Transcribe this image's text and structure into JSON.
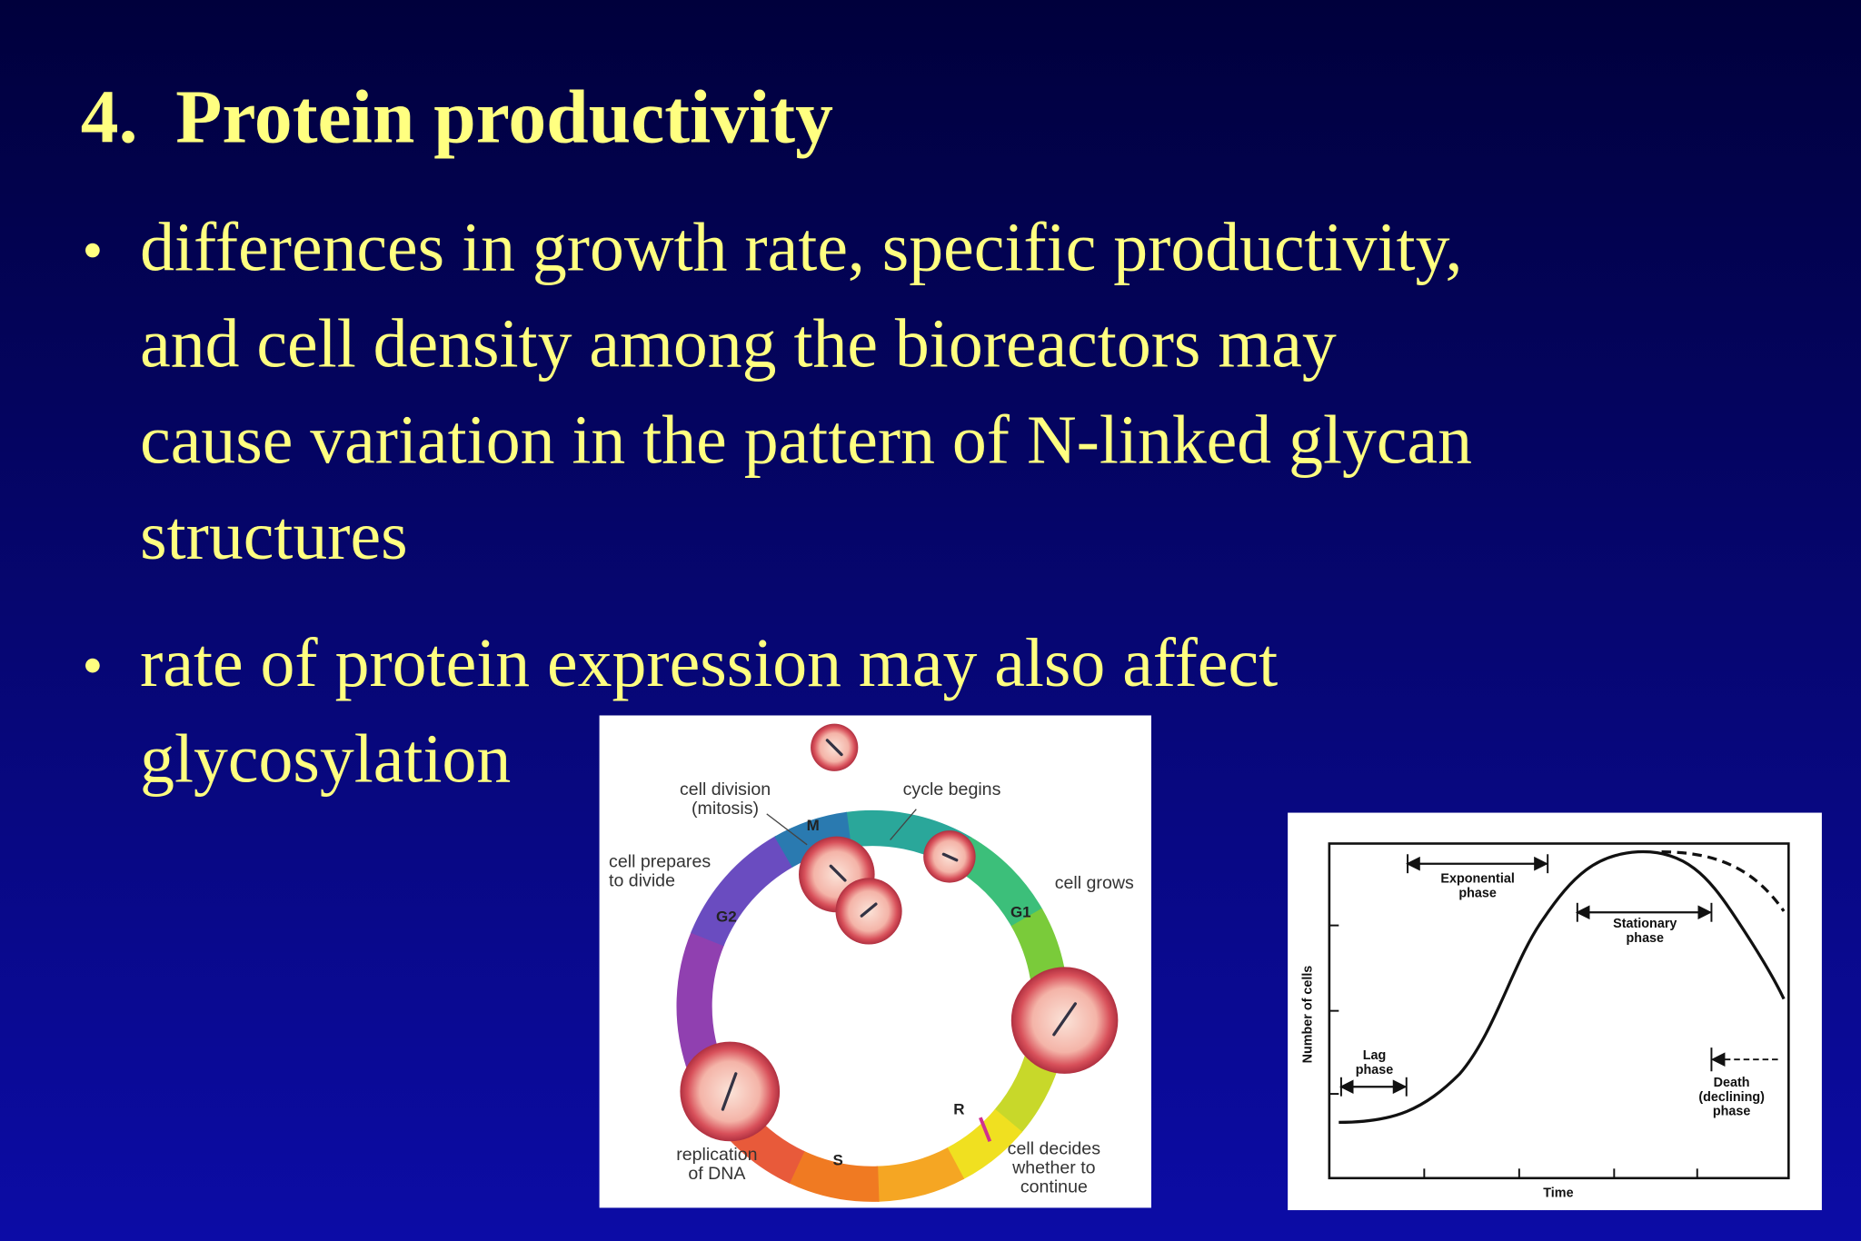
{
  "title": "4.  Protein productivity",
  "bullets": [
    {
      "lines": [
        "differences in growth rate, specific productivity,",
        "and cell density among the bioreactors may",
        "cause variation in the pattern of N-linked glycan",
        "structures"
      ]
    },
    {
      "lines": [
        "rate of protein expression may also affect",
        "glycosylation"
      ]
    }
  ],
  "cell_cycle": {
    "labels": [
      {
        "lines": [
          "cell division",
          "(mitosis)"
        ]
      },
      {
        "lines": [
          "cycle begins"
        ]
      },
      {
        "lines": [
          "cell prepares",
          "to divide"
        ]
      },
      {
        "lines": [
          "cell grows"
        ]
      },
      {
        "lines": [
          "replication",
          "of DNA"
        ]
      },
      {
        "lines": [
          "cell decides",
          "whether to",
          "continue"
        ]
      }
    ],
    "phases": [
      "M",
      "G1",
      "R",
      "S",
      "G2"
    ]
  },
  "growth_curve": {
    "y_axis": "Number of cells",
    "x_axis": "Time",
    "phases": [
      {
        "lines": [
          "Exponential",
          "phase"
        ]
      },
      {
        "lines": [
          "Stationary",
          "phase"
        ]
      },
      {
        "lines": [
          "Lag",
          "phase"
        ]
      },
      {
        "lines": [
          "Death",
          "(declining)",
          "phase"
        ]
      }
    ]
  }
}
